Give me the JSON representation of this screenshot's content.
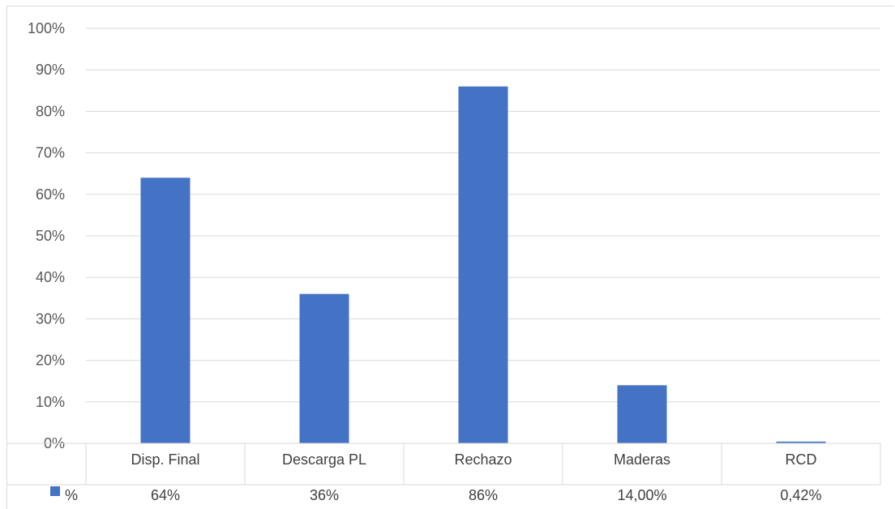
{
  "chart_data": {
    "type": "bar",
    "title": "",
    "categories": [
      "Disp. Final",
      "Descarga PL",
      "Rechazo",
      "Maderas",
      "RCD"
    ],
    "series": [
      {
        "name": "%",
        "values": [
          64,
          36,
          86,
          14,
          0.42
        ],
        "color": "#4472c4"
      }
    ],
    "data_table_labels": [
      "64%",
      "36%",
      "86%",
      "14,00%",
      "0,42%"
    ],
    "y_ticks": [
      "0%",
      "10%",
      "20%",
      "30%",
      "40%",
      "50%",
      "60%",
      "70%",
      "80%",
      "90%",
      "100%"
    ],
    "ylim": [
      0,
      100
    ],
    "grid": true,
    "legend_placement": "data-table-left"
  }
}
